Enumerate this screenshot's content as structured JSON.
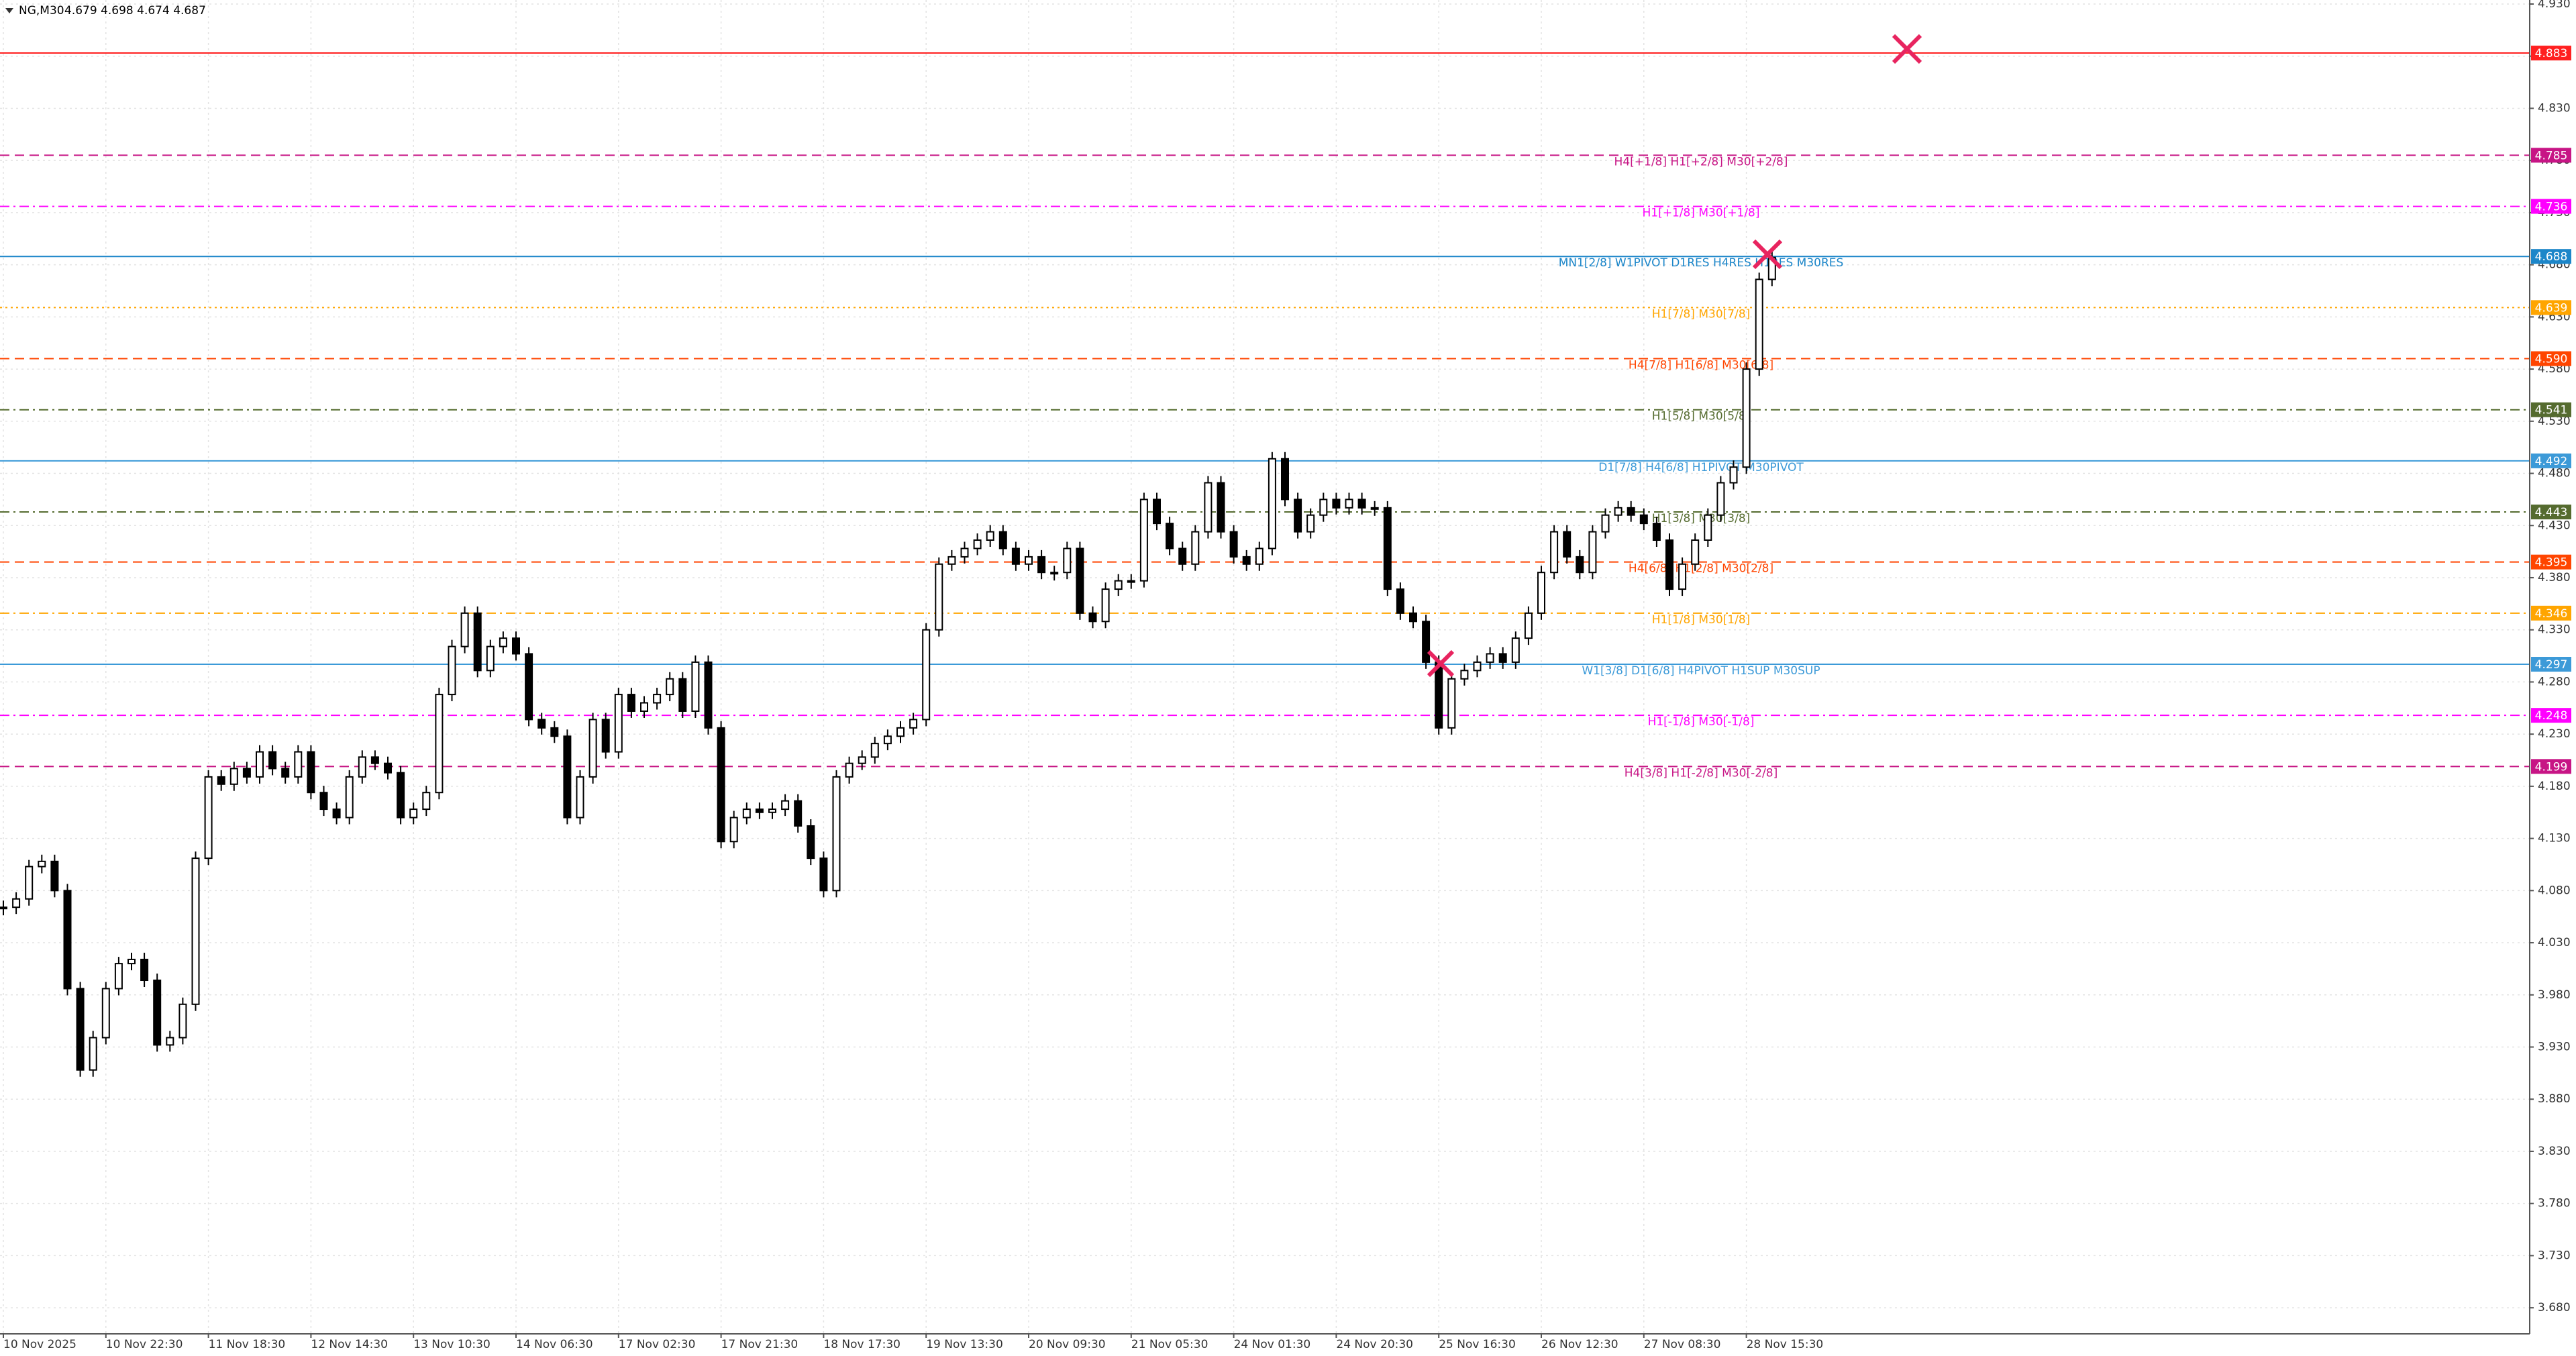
{
  "chart_data": {
    "type": "candlestick",
    "title": "NG,M30",
    "subtitle": "4.679 4.698 4.674 4.687",
    "color": "#000000",
    "up_color": "#ffffff",
    "values": [
      4.064,
      4.072,
      4.103,
      4.108,
      4.08,
      3.986,
      3.908,
      3.939,
      3.986,
      4.01,
      4.014,
      3.994,
      3.932,
      3.939,
      3.971,
      4.111,
      4.189,
      4.182,
      4.197,
      4.189,
      4.213,
      4.197,
      4.189,
      4.213,
      4.174,
      4.158,
      4.15,
      4.189,
      4.208,
      4.202,
      4.193,
      4.15,
      4.158,
      4.174,
      4.268,
      4.314,
      4.346,
      4.291,
      4.314,
      4.322,
      4.307,
      4.244,
      4.236,
      4.228,
      4.15,
      4.189,
      4.244,
      4.213,
      4.268,
      4.252,
      4.26,
      4.268,
      4.283,
      4.252,
      4.299,
      4.236,
      4.127,
      4.15,
      4.158,
      4.155,
      4.158,
      4.166,
      4.142,
      4.111,
      4.08,
      4.189,
      4.202,
      4.208,
      4.221,
      4.228,
      4.236,
      4.244,
      4.33,
      4.393,
      4.4,
      4.408,
      4.416,
      4.424,
      4.408,
      4.393,
      4.4,
      4.385,
      4.385,
      4.408,
      4.346,
      4.338,
      4.369,
      4.377,
      4.377,
      4.455,
      4.432,
      4.408,
      4.393,
      4.424,
      4.471,
      4.424,
      4.4,
      4.393,
      4.408,
      4.494,
      4.455,
      4.424,
      4.44,
      4.455,
      4.447,
      4.455,
      4.447,
      4.447,
      4.369,
      4.346,
      4.338,
      4.299,
      4.236,
      4.283,
      4.291,
      4.299,
      4.307,
      4.299,
      4.322,
      4.346,
      4.385,
      4.424,
      4.4,
      4.385,
      4.424,
      4.44,
      4.447,
      4.44,
      4.432,
      4.416,
      4.369,
      4.393,
      4.416,
      4.44,
      4.471,
      4.486,
      4.58,
      4.666,
      4.687
    ],
    "x_tick_labels": [
      "10 Nov 2025",
      "10 Nov 22:30",
      "11 Nov 18:30",
      "12 Nov 14:30",
      "13 Nov 10:30",
      "14 Nov 06:30",
      "17 Nov 02:30",
      "17 Nov 21:30",
      "18 Nov 17:30",
      "19 Nov 13:30",
      "20 Nov 09:30",
      "21 Nov 05:30",
      "24 Nov 01:30",
      "24 Nov 20:30",
      "25 Nov 16:30",
      "26 Nov 12:30",
      "27 Nov 08:30",
      "28 Nov 15:30"
    ],
    "ylim": [
      3.655,
      4.93
    ],
    "yticks": [
      {
        "value": 3.68,
        "label": "3.680"
      },
      {
        "value": 3.73,
        "label": "3.730"
      },
      {
        "value": 3.78,
        "label": "3.780"
      },
      {
        "value": 3.83,
        "label": "3.830"
      },
      {
        "value": 3.88,
        "label": "3.880"
      },
      {
        "value": 3.93,
        "label": "3.930"
      },
      {
        "value": 3.98,
        "label": "3.980"
      },
      {
        "value": 4.03,
        "label": "4.030"
      },
      {
        "value": 4.08,
        "label": "4.080"
      },
      {
        "value": 4.13,
        "label": "4.130"
      },
      {
        "value": 4.18,
        "label": "4.180"
      },
      {
        "value": 4.23,
        "label": "4.230"
      },
      {
        "value": 4.28,
        "label": "4.280"
      },
      {
        "value": 4.33,
        "label": "4.330"
      },
      {
        "value": 4.38,
        "label": "4.380"
      },
      {
        "value": 4.43,
        "label": "4.430"
      },
      {
        "value": 4.48,
        "label": "4.480"
      },
      {
        "value": 4.53,
        "label": "4.530"
      },
      {
        "value": 4.58,
        "label": "4.580"
      },
      {
        "value": 4.63,
        "label": "4.630"
      },
      {
        "value": 4.68,
        "label": "4.680"
      },
      {
        "value": 4.73,
        "label": "4.730"
      },
      {
        "value": 4.78,
        "label": "4.780"
      },
      {
        "value": 4.83,
        "label": "4.830"
      },
      {
        "value": 4.88,
        "label": "4.880"
      },
      {
        "value": 4.93,
        "label": "4.930"
      }
    ],
    "grid": true,
    "levels": [
      {
        "value": 4.883,
        "value_label": "4.883",
        "color": "#ff2020",
        "style": "solid"
      },
      {
        "value": 4.785,
        "value_label": "4.785",
        "label": "H4[+1/8] H1[+2/8] M30[+2/8]",
        "color": "#c71585",
        "style": "dash"
      },
      {
        "value": 4.736,
        "value_label": "4.736",
        "label": "H1[+1/8] M30[+1/8]",
        "color": "#ff00ff",
        "style": "dashdot"
      },
      {
        "value": 4.688,
        "value_label": "4.688",
        "label": "MN1[2/8] W1PIVOT D1RES H4RES H1RES M30RES",
        "color": "#1c86c9",
        "style": "solid"
      },
      {
        "value": 4.639,
        "value_label": "4.639",
        "label": "H1[7/8] M30[7/8]",
        "color": "#ffa500",
        "style": "dot"
      },
      {
        "value": 4.59,
        "value_label": "4.590",
        "label": "H4[7/8] H1[6/8] M30[6/8]",
        "color": "#ff4500",
        "style": "dash"
      },
      {
        "value": 4.541,
        "value_label": "4.541",
        "label": "H1[5/8] M30[5/8]",
        "color": "#556b2f",
        "style": "dashdot"
      },
      {
        "value": 4.492,
        "value_label": "4.492",
        "label": "D1[7/8] H4[6/8] H1PIVOT M30PIVOT",
        "color": "#3c9ad8",
        "style": "solid"
      },
      {
        "value": 4.443,
        "value_label": "4.443",
        "label": "H1[3/8] M30[3/8]",
        "color": "#556b2f",
        "style": "dashdot"
      },
      {
        "value": 4.395,
        "value_label": "4.395",
        "label": "H4[6/8] H1[2/8] M30[2/8]",
        "color": "#ff4500",
        "style": "dash"
      },
      {
        "value": 4.346,
        "value_label": "4.346",
        "label": "H1[1/8] M30[1/8]",
        "color": "#ffa500",
        "style": "dashdot"
      },
      {
        "value": 4.297,
        "value_label": "4.297",
        "label": "W1[3/8] D1[6/8] H4PIVOT H1SUP M30SUP",
        "color": "#3c9ad8",
        "style": "solid"
      },
      {
        "value": 4.248,
        "value_label": "4.248",
        "label": "H1[-1/8] M30[-1/8]",
        "color": "#ff00ff",
        "style": "dashdot"
      },
      {
        "value": 4.199,
        "value_label": "4.199",
        "label": "H4[3/8] H1[-2/8] M30[-2/8]",
        "color": "#c71585",
        "style": "dash"
      }
    ]
  }
}
